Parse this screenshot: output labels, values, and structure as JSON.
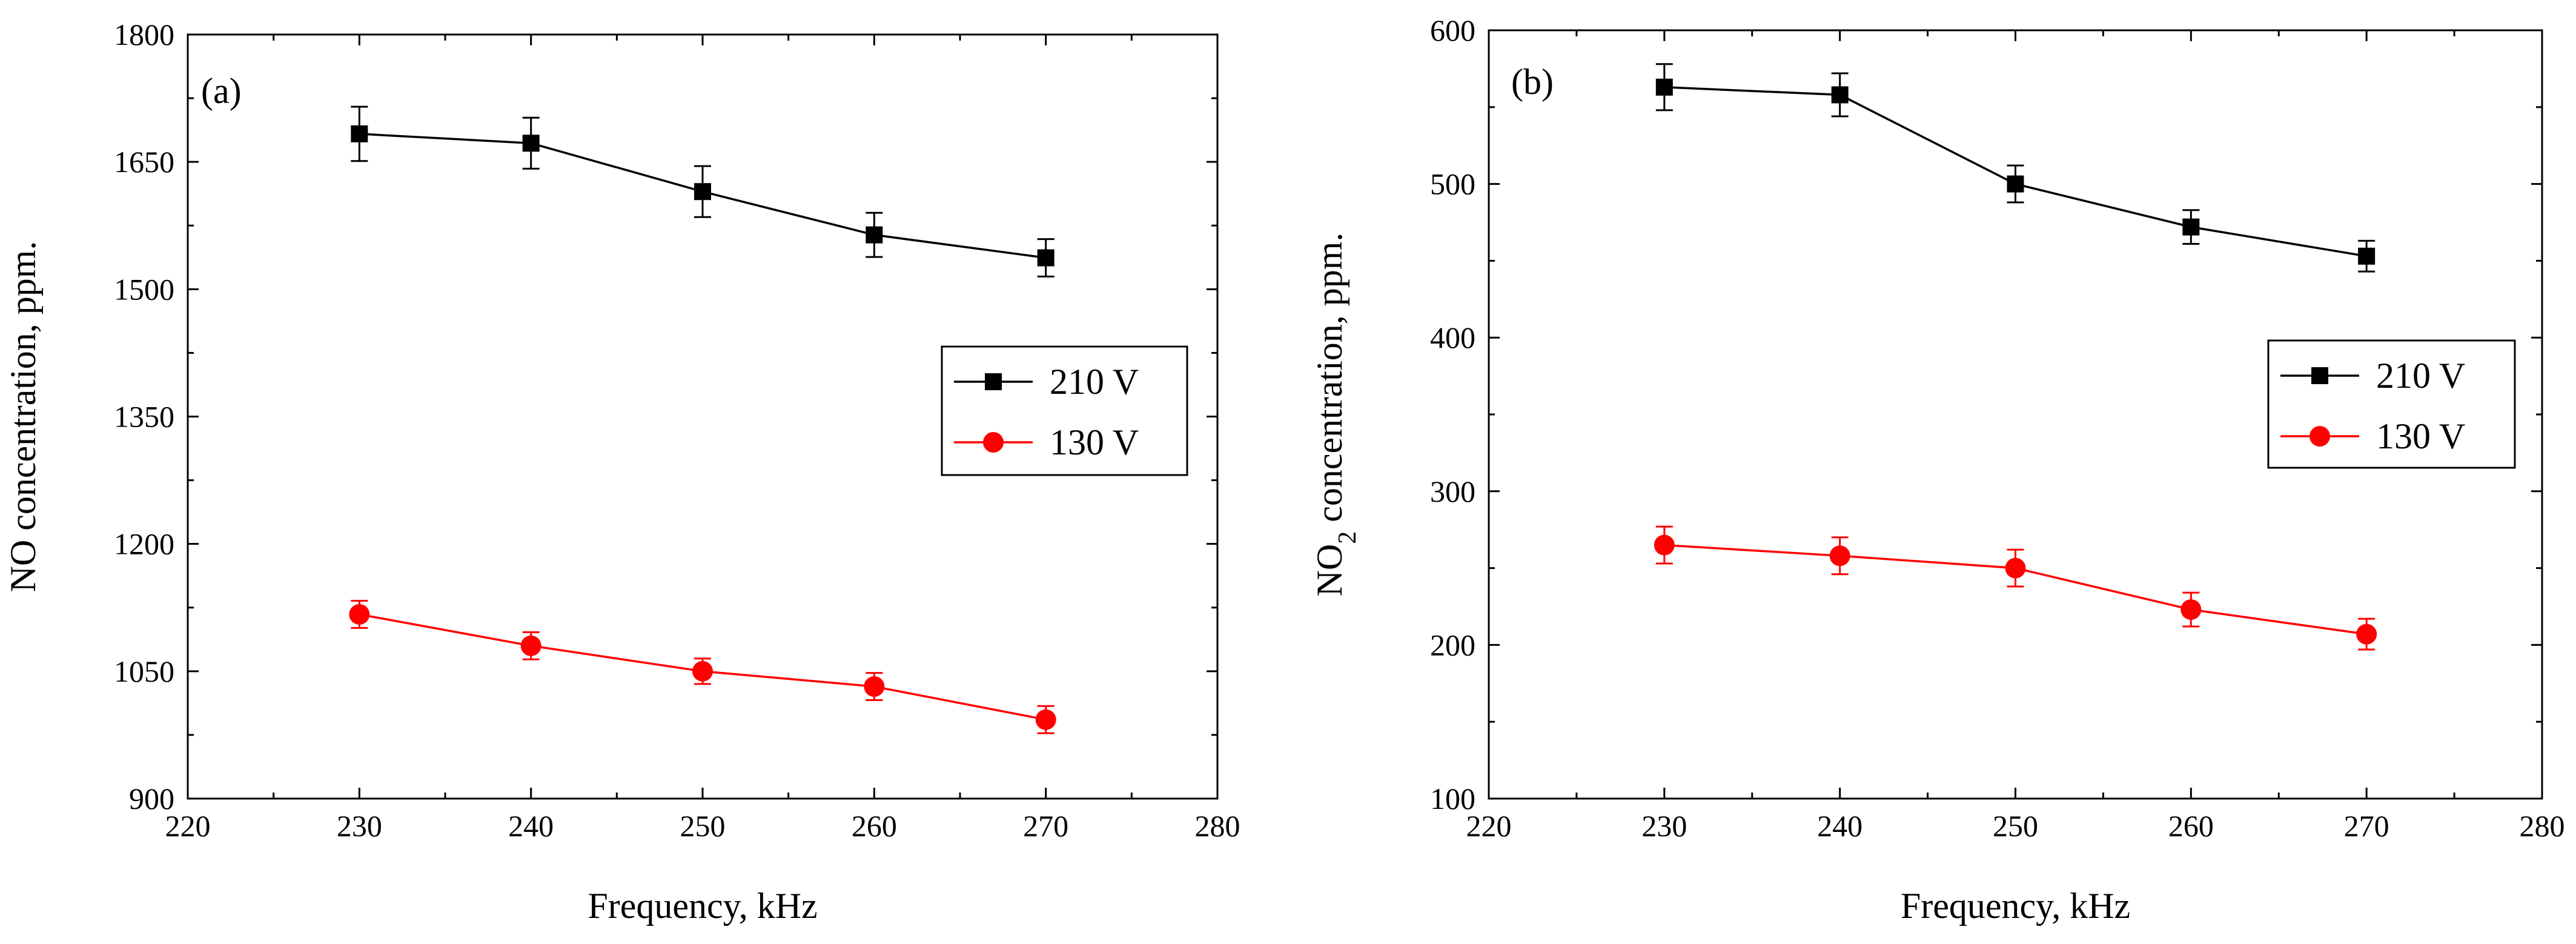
{
  "chart_data": [
    {
      "type": "line",
      "panel_label": "(a)",
      "xlabel": "Frequency, kHz",
      "ylabel": "NO concentration, ppm.",
      "xlim": [
        220,
        280
      ],
      "ylim": [
        900,
        1800
      ],
      "xticks": [
        220,
        230,
        240,
        250,
        260,
        270,
        280
      ],
      "yticks": [
        900,
        1050,
        1200,
        1350,
        1500,
        1650,
        1800
      ],
      "grid": false,
      "legend_position": "right",
      "x": [
        230,
        240,
        250,
        260,
        270
      ],
      "series": [
        {
          "name": "210 V",
          "color": "#000000",
          "marker": "square",
          "values": [
            1683,
            1672,
            1615,
            1564,
            1537
          ],
          "errors": [
            32,
            30,
            30,
            26,
            22
          ]
        },
        {
          "name": "130 V",
          "color": "#ff0000",
          "marker": "circle",
          "values": [
            1117,
            1080,
            1050,
            1032,
            993
          ],
          "errors": [
            16,
            16,
            15,
            16,
            16
          ]
        }
      ]
    },
    {
      "type": "line",
      "panel_label": "(b)",
      "xlabel": "Frequency, kHz",
      "ylabel_main": "NO",
      "ylabel_sub": "2",
      "ylabel_rest": " concentration, ppm.",
      "xlim": [
        220,
        280
      ],
      "ylim": [
        100,
        600
      ],
      "xticks": [
        220,
        230,
        240,
        250,
        260,
        270,
        280
      ],
      "yticks": [
        100,
        200,
        300,
        400,
        500,
        600
      ],
      "grid": false,
      "legend_position": "right",
      "x": [
        230,
        240,
        250,
        260,
        270
      ],
      "series": [
        {
          "name": "210 V",
          "color": "#000000",
          "marker": "square",
          "values": [
            563,
            558,
            500,
            472,
            453
          ],
          "errors": [
            15,
            14,
            12,
            11,
            10
          ]
        },
        {
          "name": "130 V",
          "color": "#ff0000",
          "marker": "circle",
          "values": [
            265,
            258,
            250,
            223,
            207
          ],
          "errors": [
            12,
            12,
            12,
            11,
            10
          ]
        }
      ]
    }
  ]
}
